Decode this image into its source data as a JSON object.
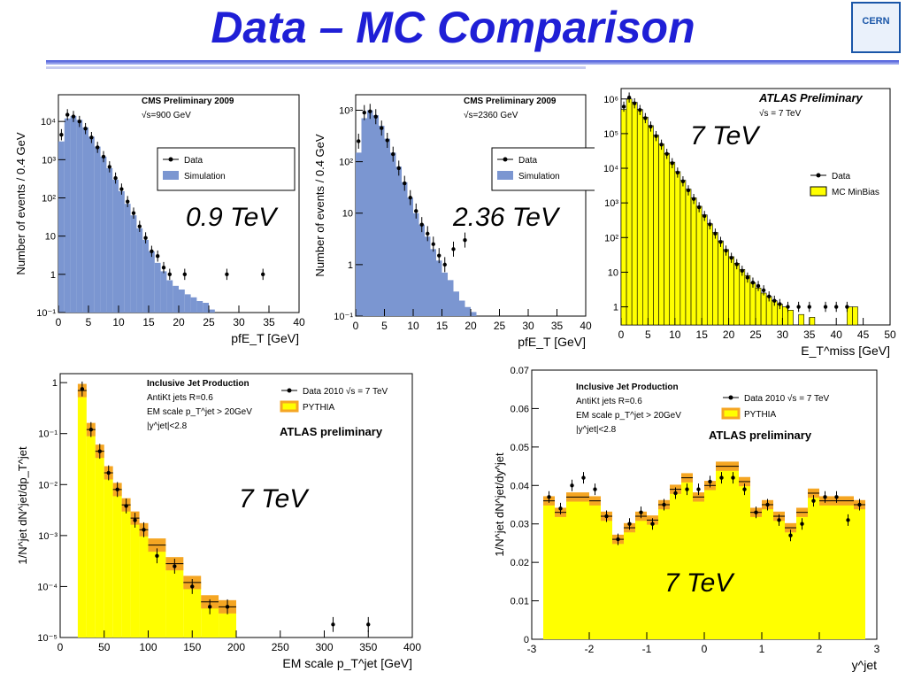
{
  "page": {
    "title": "Data – MC Comparison",
    "logo_text": "CERN",
    "panels": [
      {
        "id": "p1",
        "header": [
          "CMS Preliminary 2009",
          "√s=900 GeV"
        ],
        "legend": [
          "Data",
          "Simulation"
        ],
        "energy": "0.9 TeV"
      },
      {
        "id": "p2",
        "header": [
          "CMS Preliminary 2009",
          "√s=2360 GeV"
        ],
        "legend": [
          "Data",
          "Simulation"
        ],
        "energy": "2.36 TeV"
      },
      {
        "id": "p3",
        "header": [
          "ATLAS Preliminary",
          "√s = 7 TeV"
        ],
        "legend": [
          "Data",
          "MC MinBias"
        ],
        "energy": "7 TeV"
      },
      {
        "id": "p4",
        "header": [
          "Inclusive Jet Production",
          "AntiKt jets R=0.6",
          "EM scale p_T^jet > 20GeV",
          "|y^jet|<2.8"
        ],
        "legend": [
          "Data 2010 √s = 7 TeV",
          "PYTHIA"
        ],
        "tag": "ATLAS preliminary",
        "energy": "7 TeV"
      },
      {
        "id": "p5",
        "header": [
          "Inclusive Jet Production",
          "AntiKt jets R=0.6",
          "EM scale p_T^jet > 20GeV",
          "|y^jet|<2.8"
        ],
        "legend": [
          "Data 2010 √s = 7 TeV",
          "PYTHIA"
        ],
        "tag": "ATLAS preliminary",
        "energy": "7 TeV"
      }
    ]
  },
  "colors": {
    "title": "#1f1fd6",
    "cms_fill": "#7b96d1",
    "atlas_fill": "#ffff00",
    "band": "#f5a623"
  },
  "chart_data": [
    {
      "type": "bar",
      "ylog": true,
      "xlabel": "pfE_T [GeV]",
      "ylabel": "Number of events / 0.4 GeV",
      "xlim": [
        0,
        40
      ],
      "ylim": [
        0.1,
        50000
      ],
      "xticks": [
        0,
        5,
        10,
        15,
        20,
        25,
        30,
        35,
        40
      ],
      "yticks": [
        {
          "v": 0.1,
          "l": "10⁻¹"
        },
        {
          "v": 1,
          "l": "1"
        },
        {
          "v": 10,
          "l": "10"
        },
        {
          "v": 100,
          "l": "10²"
        },
        {
          "v": 1000,
          "l": "10³"
        },
        {
          "v": 10000,
          "l": "10⁴"
        }
      ],
      "sim": [
        [
          0,
          3000
        ],
        [
          1,
          12000
        ],
        [
          2,
          14000
        ],
        [
          3,
          11000
        ],
        [
          4,
          7000
        ],
        [
          5,
          4000
        ],
        [
          6,
          2200
        ],
        [
          7,
          1200
        ],
        [
          8,
          600
        ],
        [
          9,
          300
        ],
        [
          10,
          150
        ],
        [
          11,
          70
        ],
        [
          12,
          35
        ],
        [
          13,
          16
        ],
        [
          14,
          8
        ],
        [
          15,
          4
        ],
        [
          16,
          2
        ],
        [
          17,
          1.2
        ],
        [
          18,
          0.7
        ],
        [
          19,
          0.5
        ],
        [
          20,
          0.4
        ],
        [
          21,
          0.3
        ],
        [
          22,
          0.25
        ],
        [
          23,
          0.2
        ],
        [
          24,
          0.18
        ],
        [
          25,
          0.12
        ]
      ],
      "data": [
        [
          0.5,
          4500
        ],
        [
          1.5,
          15000
        ],
        [
          2.5,
          13500
        ],
        [
          3.5,
          10000
        ],
        [
          4.5,
          6500
        ],
        [
          5.5,
          3800
        ],
        [
          6.5,
          2100
        ],
        [
          7.5,
          1200
        ],
        [
          8.5,
          650
        ],
        [
          9.5,
          330
        ],
        [
          10.5,
          170
        ],
        [
          11.5,
          80
        ],
        [
          12.5,
          40
        ],
        [
          13.5,
          18
        ],
        [
          14.5,
          9
        ],
        [
          15.5,
          4
        ],
        [
          16.5,
          3
        ],
        [
          17.5,
          1.5
        ],
        [
          18.5,
          1
        ],
        [
          21,
          1
        ],
        [
          28,
          1
        ],
        [
          34,
          1
        ]
      ]
    },
    {
      "type": "bar",
      "ylog": true,
      "xlabel": "pfE_T [GeV]",
      "ylabel": "Number of events / 0.4 GeV",
      "xlim": [
        0,
        40
      ],
      "ylim": [
        0.1,
        2000
      ],
      "xticks": [
        0,
        5,
        10,
        15,
        20,
        25,
        30,
        35,
        40
      ],
      "yticks": [
        {
          "v": 0.1,
          "l": "10⁻¹"
        },
        {
          "v": 1,
          "l": "1"
        },
        {
          "v": 10,
          "l": "10"
        },
        {
          "v": 100,
          "l": "10²"
        },
        {
          "v": 1000,
          "l": "10³"
        }
      ],
      "sim": [
        [
          0,
          150
        ],
        [
          1,
          700
        ],
        [
          2,
          1000
        ],
        [
          3,
          800
        ],
        [
          4,
          500
        ],
        [
          5,
          280
        ],
        [
          6,
          150
        ],
        [
          7,
          80
        ],
        [
          8,
          40
        ],
        [
          9,
          20
        ],
        [
          10,
          10
        ],
        [
          11,
          6
        ],
        [
          12,
          3.5
        ],
        [
          13,
          2
        ],
        [
          14,
          1.2
        ],
        [
          15,
          0.7
        ],
        [
          16,
          0.5
        ],
        [
          17,
          0.3
        ],
        [
          18,
          0.2
        ],
        [
          19,
          0.15
        ],
        [
          20,
          0.12
        ]
      ],
      "data": [
        [
          0.5,
          250
        ],
        [
          1.5,
          900
        ],
        [
          2.5,
          950
        ],
        [
          3.5,
          750
        ],
        [
          4.5,
          450
        ],
        [
          5.5,
          260
        ],
        [
          6.5,
          140
        ],
        [
          7.5,
          75
        ],
        [
          8.5,
          38
        ],
        [
          9.5,
          20
        ],
        [
          10.5,
          11
        ],
        [
          11.5,
          6
        ],
        [
          12.5,
          4
        ],
        [
          13.5,
          2.5
        ],
        [
          14.5,
          1.5
        ],
        [
          15.5,
          1
        ],
        [
          17,
          2
        ],
        [
          19,
          3
        ]
      ]
    },
    {
      "type": "bar",
      "ylog": true,
      "xlabel": "E_T^miss [GeV]",
      "ylabel": "",
      "xlim": [
        0,
        50
      ],
      "ylim": [
        0.3,
        2000000
      ],
      "xticks": [
        0,
        5,
        10,
        15,
        20,
        25,
        30,
        35,
        40,
        45,
        50
      ],
      "yticks": [
        {
          "v": 1,
          "l": "1"
        },
        {
          "v": 10,
          "l": "10"
        },
        {
          "v": 100,
          "l": "10²"
        },
        {
          "v": 1000,
          "l": "10³"
        },
        {
          "v": 10000,
          "l": "10⁴"
        },
        {
          "v": 100000,
          "l": "10⁵"
        },
        {
          "v": 1000000,
          "l": "10⁶"
        }
      ],
      "sim": [
        [
          0,
          500000
        ],
        [
          1,
          1000000
        ],
        [
          2,
          800000
        ],
        [
          3,
          500000
        ],
        [
          4,
          300000
        ],
        [
          5,
          170000
        ],
        [
          6,
          90000
        ],
        [
          7,
          50000
        ],
        [
          8,
          27000
        ],
        [
          9,
          15000
        ],
        [
          10,
          8000
        ],
        [
          11,
          4500
        ],
        [
          12,
          2500
        ],
        [
          13,
          1400
        ],
        [
          14,
          800
        ],
        [
          15,
          450
        ],
        [
          16,
          250
        ],
        [
          17,
          140
        ],
        [
          18,
          80
        ],
        [
          19,
          45
        ],
        [
          20,
          28
        ],
        [
          21,
          18
        ],
        [
          22,
          12
        ],
        [
          23,
          8
        ],
        [
          24,
          5
        ],
        [
          25,
          3.5
        ],
        [
          26,
          2.5
        ],
        [
          27,
          2
        ],
        [
          28,
          1.5
        ],
        [
          29,
          1.2
        ],
        [
          30,
          1
        ],
        [
          31,
          0.8
        ],
        [
          33,
          0.6
        ],
        [
          35,
          0.5
        ],
        [
          42,
          1
        ],
        [
          43,
          1
        ]
      ],
      "data": [
        [
          0.5,
          600000
        ],
        [
          1.5,
          1100000
        ],
        [
          2.5,
          750000
        ],
        [
          3.5,
          480000
        ],
        [
          4.5,
          280000
        ],
        [
          5.5,
          160000
        ],
        [
          6.5,
          85000
        ],
        [
          7.5,
          48000
        ],
        [
          8.5,
          26000
        ],
        [
          9.5,
          14000
        ],
        [
          10.5,
          7500
        ],
        [
          11.5,
          4200
        ],
        [
          12.5,
          2300
        ],
        [
          13.5,
          1300
        ],
        [
          14.5,
          750
        ],
        [
          15.5,
          420
        ],
        [
          16.5,
          240
        ],
        [
          17.5,
          130
        ],
        [
          18.5,
          75
        ],
        [
          19.5,
          42
        ],
        [
          20.5,
          26
        ],
        [
          21.5,
          17
        ],
        [
          22.5,
          11
        ],
        [
          23.5,
          7
        ],
        [
          24.5,
          5
        ],
        [
          25.5,
          4
        ],
        [
          26.5,
          3
        ],
        [
          27.5,
          2
        ],
        [
          28.5,
          1.5
        ],
        [
          29.5,
          1.2
        ],
        [
          31,
          1
        ],
        [
          33,
          1
        ],
        [
          35,
          1
        ],
        [
          38,
          1
        ],
        [
          40,
          1
        ],
        [
          42,
          1
        ]
      ]
    },
    {
      "type": "bar",
      "ylog": true,
      "xlabel": "EM scale p_T^jet [GeV]",
      "ylabel": "1/N^jet dN^jet/dp_T^jet",
      "xlim": [
        0,
        400
      ],
      "ylim": [
        1e-05,
        1.5
      ],
      "xticks": [
        0,
        50,
        100,
        150,
        200,
        250,
        300,
        350,
        400
      ],
      "yticks": [
        {
          "v": 1e-05,
          "l": "10⁻⁵"
        },
        {
          "v": 0.0001,
          "l": "10⁻⁴"
        },
        {
          "v": 0.001,
          "l": "10⁻³"
        },
        {
          "v": 0.01,
          "l": "10⁻²"
        },
        {
          "v": 0.1,
          "l": "10⁻¹"
        },
        {
          "v": 1,
          "l": "1"
        }
      ],
      "bins": [
        [
          20,
          30,
          0.7
        ],
        [
          30,
          40,
          0.12
        ],
        [
          40,
          50,
          0.045
        ],
        [
          50,
          60,
          0.017
        ],
        [
          60,
          70,
          0.008
        ],
        [
          70,
          80,
          0.004
        ],
        [
          80,
          90,
          0.0022
        ],
        [
          90,
          100,
          0.0013
        ],
        [
          100,
          120,
          0.00065
        ],
        [
          120,
          140,
          0.00028
        ],
        [
          140,
          160,
          0.00012
        ],
        [
          160,
          180,
          5e-05
        ],
        [
          180,
          200,
          4e-05
        ]
      ],
      "data": [
        [
          25,
          0.75
        ],
        [
          35,
          0.12
        ],
        [
          45,
          0.045
        ],
        [
          55,
          0.017
        ],
        [
          65,
          0.008
        ],
        [
          75,
          0.0038
        ],
        [
          85,
          0.002
        ],
        [
          95,
          0.0013
        ],
        [
          110,
          0.0004
        ],
        [
          130,
          0.00025
        ],
        [
          150,
          0.0001
        ],
        [
          170,
          4e-05
        ],
        [
          190,
          4e-05
        ],
        [
          310,
          1.8e-05
        ],
        [
          350,
          1.8e-05
        ]
      ]
    },
    {
      "type": "bar",
      "ylog": false,
      "xlabel": "y^jet",
      "ylabel": "1/N^jet dN^jet/dy^jet",
      "xlim": [
        -3,
        3
      ],
      "ylim": [
        0,
        0.07
      ],
      "xticks": [
        -3,
        -2,
        -1,
        0,
        1,
        2,
        3
      ],
      "yticks": [
        {
          "v": 0,
          "l": "0"
        },
        {
          "v": 0.01,
          "l": "0.01"
        },
        {
          "v": 0.02,
          "l": "0.02"
        },
        {
          "v": 0.03,
          "l": "0.03"
        },
        {
          "v": 0.04,
          "l": "0.04"
        },
        {
          "v": 0.05,
          "l": "0.05"
        },
        {
          "v": 0.06,
          "l": "0.06"
        },
        {
          "v": 0.07,
          "l": "0.07"
        }
      ],
      "bins": [
        [
          -2.8,
          -2.6,
          0.036
        ],
        [
          -2.6,
          -2.4,
          0.033
        ],
        [
          -2.4,
          -2.0,
          0.037
        ],
        [
          -2.0,
          -1.8,
          0.036
        ],
        [
          -1.8,
          -1.6,
          0.032
        ],
        [
          -1.6,
          -1.4,
          0.026
        ],
        [
          -1.4,
          -1.2,
          0.029
        ],
        [
          -1.2,
          -1.0,
          0.032
        ],
        [
          -1.0,
          -0.8,
          0.031
        ],
        [
          -0.8,
          -0.6,
          0.035
        ],
        [
          -0.6,
          -0.4,
          0.039
        ],
        [
          -0.4,
          -0.2,
          0.042
        ],
        [
          -0.2,
          0.0,
          0.037
        ],
        [
          0.0,
          0.2,
          0.04
        ],
        [
          0.2,
          0.6,
          0.045
        ],
        [
          0.6,
          0.8,
          0.041
        ],
        [
          0.8,
          1.0,
          0.033
        ],
        [
          1.0,
          1.2,
          0.035
        ],
        [
          1.2,
          1.4,
          0.032
        ],
        [
          1.4,
          1.6,
          0.029
        ],
        [
          1.6,
          1.8,
          0.033
        ],
        [
          1.8,
          2.0,
          0.038
        ],
        [
          2.0,
          2.2,
          0.036
        ],
        [
          2.2,
          2.6,
          0.036
        ],
        [
          2.6,
          2.8,
          0.035
        ]
      ],
      "data": [
        [
          -2.7,
          0.037
        ],
        [
          -2.5,
          0.034
        ],
        [
          -2.3,
          0.04
        ],
        [
          -2.1,
          0.042
        ],
        [
          -1.9,
          0.039
        ],
        [
          -1.7,
          0.032
        ],
        [
          -1.5,
          0.026
        ],
        [
          -1.3,
          0.03
        ],
        [
          -1.1,
          0.033
        ],
        [
          -0.9,
          0.03
        ],
        [
          -0.7,
          0.035
        ],
        [
          -0.5,
          0.038
        ],
        [
          -0.3,
          0.039
        ],
        [
          -0.1,
          0.039
        ],
        [
          0.1,
          0.041
        ],
        [
          0.3,
          0.042
        ],
        [
          0.5,
          0.042
        ],
        [
          0.7,
          0.039
        ],
        [
          0.9,
          0.033
        ],
        [
          1.1,
          0.035
        ],
        [
          1.3,
          0.031
        ],
        [
          1.5,
          0.027
        ],
        [
          1.7,
          0.03
        ],
        [
          1.9,
          0.036
        ],
        [
          2.1,
          0.037
        ],
        [
          2.3,
          0.037
        ],
        [
          2.5,
          0.031
        ],
        [
          2.7,
          0.035
        ]
      ]
    }
  ]
}
